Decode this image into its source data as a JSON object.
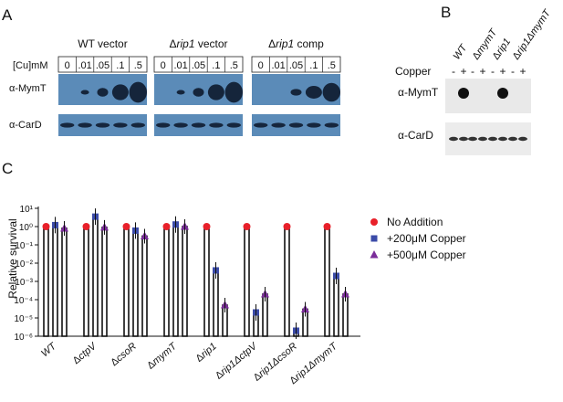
{
  "panels": {
    "a": "A",
    "b": "B",
    "c": "C"
  },
  "panel_a": {
    "cu_label": "[Cu]mM",
    "groups": [
      {
        "label": "WT vector",
        "prefix": "",
        "lanes": [
          "0",
          ".01",
          ".05",
          ".1",
          ".5"
        ]
      },
      {
        "label": " vector",
        "prefix": "Δ",
        "italic": "rip1",
        "lanes": [
          "0",
          ".01",
          ".05",
          ".1",
          ".5"
        ]
      },
      {
        "label": " comp",
        "prefix": "Δ",
        "italic": "rip1",
        "lanes": [
          "0",
          ".01",
          ".05",
          ".1",
          ".5"
        ]
      }
    ],
    "blot_labels": [
      "α-MymT",
      "α-CarD"
    ]
  },
  "panel_b": {
    "strains": [
      {
        "prefix": "",
        "italic": "WT"
      },
      {
        "prefix": "Δ",
        "italic": "mymT"
      },
      {
        "prefix": "Δ",
        "italic": "rip1"
      },
      {
        "prefix": "Δ",
        "italic": "rip1ΔmymT"
      }
    ],
    "copper_label": "Copper",
    "signs": [
      "-",
      "+",
      "-",
      "+",
      "-",
      "+",
      "-",
      "+"
    ],
    "blot_labels": [
      "α-MymT",
      "α-CarD"
    ]
  },
  "colors": {
    "no_addition": "#e8202a",
    "cu200": "#3b4ba8",
    "cu500": "#7b2d9a",
    "blot": "#5b8bb8"
  },
  "chart_data": {
    "type": "bar",
    "ylabel": "Relative survival",
    "yscale": "log",
    "ylim": [
      1e-06,
      10
    ],
    "y_tick_labels": [
      "10¹",
      "10⁰",
      "10⁻¹",
      "10⁻²",
      "10⁻³",
      "10⁻⁴",
      "10⁻⁵",
      "10⁻⁶"
    ],
    "categories": [
      {
        "prefix": "",
        "italic": "WT"
      },
      {
        "prefix": "Δ",
        "italic": "ctpV"
      },
      {
        "prefix": "Δ",
        "italic": "csoR"
      },
      {
        "prefix": "Δ",
        "italic": "mymT"
      },
      {
        "prefix": "Δ",
        "italic": "rip1"
      },
      {
        "prefix": "Δ",
        "italic": "rip1ΔctpV"
      },
      {
        "prefix": "Δ",
        "italic": "rip1ΔcsoR"
      },
      {
        "prefix": "Δ",
        "italic": "rip1ΔmymT"
      }
    ],
    "series": [
      {
        "name": "No Addition",
        "marker": "circle",
        "values": [
          1,
          1,
          1,
          1,
          1,
          1,
          1,
          1
        ]
      },
      {
        "name": "+200μM Copper",
        "marker": "square",
        "values": [
          1.2,
          3.5,
          0.6,
          1.3,
          0.004,
          2e-05,
          2e-06,
          0.002
        ]
      },
      {
        "name": "+500μM Copper",
        "marker": "triangle",
        "values": [
          0.8,
          0.9,
          0.3,
          1.0,
          5e-05,
          0.0002,
          3e-05,
          0.0002
        ]
      }
    ],
    "legend": "right"
  }
}
